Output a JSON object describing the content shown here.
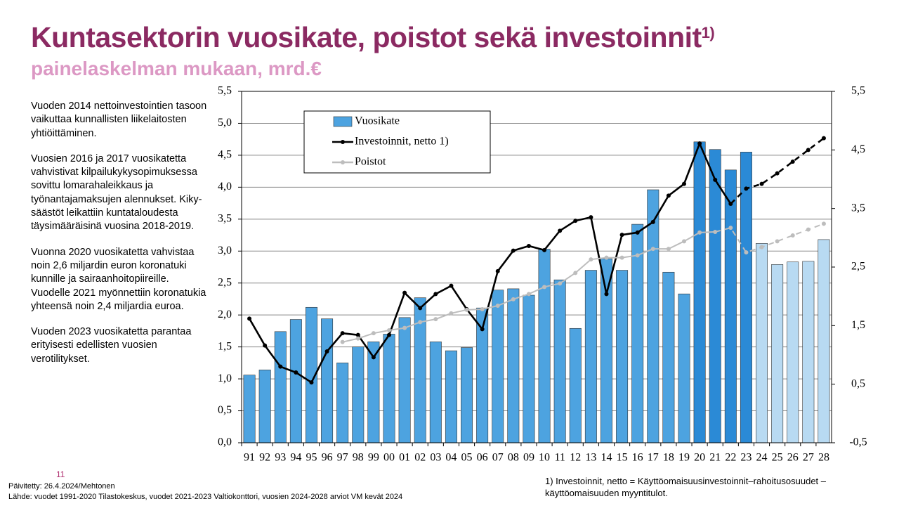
{
  "header": {
    "title": "Kuntasektorin vuosikate, poistot sekä investoinnit",
    "title_sup": "1)",
    "subtitle": "painelaskelman mukaan, mrd.€"
  },
  "side_text": [
    "Vuoden 2014 nettoinvestointien tasoon vaikuttaa kunnallisten liikelaitosten yhtiöittäminen.",
    "Vuosien 2016 ja 2017 vuosikatetta vahvistivat kilpailukykysopimuksessa sovittu lomarahaleikkaus ja työnantajamaksujen alennukset. Kiky-säästöt leikattiin kuntataloudesta täysimääräisinä vuosina 2018-2019.",
    "Vuonna 2020 vuosikatetta vahvistaa noin 2,6 miljardin euron koronatuki kunnille ja sairaanhoitopiireille. Vuodelle 2021 myönnettiin koronatukia yhteensä noin 2,4 miljardia euroa.",
    "Vuoden 2023 vuosikatetta parantaa erityisesti edellisten vuosien verotilitykset."
  ],
  "page_number": "11",
  "footer": {
    "updated": "Päivitetty: 26.4.2024/Mehtonen",
    "source": "Lähde: vuodet 1991-2020 Tilastokeskus, vuodet 2021-2023 Valtiokonttori, vuosien 2024-2028 arviot VM kevät 2024",
    "footnote": "1) Investoinnit, netto  = Käyttöomaisuusinvestoinnit–rahoitusosuudet – käyttöomaisuuden myyntitulot."
  },
  "chart_data": {
    "type": "bar_line",
    "categories": [
      "91",
      "92",
      "93",
      "94",
      "95",
      "96",
      "97",
      "98",
      "99",
      "00",
      "01",
      "02",
      "03",
      "04",
      "05",
      "06",
      "07",
      "08",
      "09",
      "10",
      "11",
      "12",
      "13",
      "14",
      "15",
      "16",
      "17",
      "18",
      "19",
      "20",
      "21",
      "22",
      "23",
      "24",
      "25",
      "26",
      "27",
      "28"
    ],
    "series": [
      {
        "name": "Vuosikate",
        "type": "bar",
        "color": "#4da3e0",
        "colors": [
          "#4da3e0",
          "#4da3e0",
          "#4da3e0",
          "#4da3e0",
          "#4da3e0",
          "#4da3e0",
          "#4da3e0",
          "#4da3e0",
          "#4da3e0",
          "#4da3e0",
          "#4da3e0",
          "#4da3e0",
          "#4da3e0",
          "#4da3e0",
          "#4da3e0",
          "#4da3e0",
          "#4da3e0",
          "#4da3e0",
          "#4da3e0",
          "#4da3e0",
          "#4da3e0",
          "#4da3e0",
          "#4da3e0",
          "#4da3e0",
          "#4da3e0",
          "#4da3e0",
          "#4da3e0",
          "#4da3e0",
          "#4da3e0",
          "#2b8ad6",
          "#2b8ad6",
          "#2b8ad6",
          "#2b8ad6",
          "#b8daf2",
          "#b8daf2",
          "#b8daf2",
          "#b8daf2",
          "#b8daf2"
        ],
        "values": [
          1.06,
          1.14,
          1.74,
          1.93,
          2.12,
          1.94,
          1.25,
          1.5,
          1.58,
          1.7,
          1.96,
          2.27,
          1.58,
          1.44,
          1.49,
          2.11,
          2.39,
          2.41,
          2.31,
          3.03,
          2.55,
          1.79,
          2.7,
          2.88,
          2.7,
          3.42,
          3.96,
          2.67,
          2.33,
          4.71,
          4.59,
          4.27,
          4.55,
          3.12,
          2.79,
          2.83,
          2.84,
          3.18
        ]
      },
      {
        "name": "Investoinnit, netto 1)",
        "type": "line",
        "axis": "y2",
        "color": "#000000",
        "dash_from": 32,
        "values": [
          1.62,
          1.16,
          0.8,
          0.7,
          0.53,
          1.06,
          1.37,
          1.34,
          0.96,
          1.34,
          2.06,
          1.8,
          2.04,
          2.18,
          1.78,
          1.44,
          2.43,
          2.78,
          2.86,
          2.79,
          3.12,
          3.29,
          3.35,
          2.04,
          3.05,
          3.09,
          3.27,
          3.72,
          3.92,
          4.61,
          3.99,
          3.58,
          3.84,
          3.92,
          4.1,
          4.3,
          4.5,
          4.7
        ]
      },
      {
        "name": "Poistot",
        "type": "line",
        "axis": "y2",
        "color": "#bdbdbd",
        "dash_from": 31,
        "values": [
          null,
          null,
          null,
          null,
          null,
          null,
          1.22,
          1.28,
          1.37,
          1.42,
          1.46,
          1.56,
          1.61,
          1.71,
          1.77,
          1.78,
          1.84,
          1.95,
          2.04,
          2.16,
          2.22,
          2.4,
          2.63,
          2.66,
          2.66,
          2.7,
          2.81,
          2.81,
          2.94,
          3.09,
          3.1,
          3.17,
          2.75,
          2.84,
          2.94,
          3.04,
          3.14,
          3.24
        ]
      }
    ],
    "ylim": [
      0,
      5.5
    ],
    "yticks": [
      {
        "value": 0,
        "label": "0,0"
      },
      {
        "value": 0.5,
        "label": "0,5"
      },
      {
        "value": 1,
        "label": "1,0"
      },
      {
        "value": 1.5,
        "label": "1,5"
      },
      {
        "value": 2,
        "label": "2,0"
      },
      {
        "value": 2.5,
        "label": "2,5"
      },
      {
        "value": 3,
        "label": "3,0"
      },
      {
        "value": 3.5,
        "label": "3,5"
      },
      {
        "value": 4,
        "label": "4,0"
      },
      {
        "value": 4.5,
        "label": "4,5"
      },
      {
        "value": 5,
        "label": "5,0"
      },
      {
        "value": 5.5,
        "label": "5,5"
      }
    ],
    "y2lim": [
      -0.5,
      5.5
    ],
    "y2ticks": [
      {
        "value": -0.5,
        "label": "-0,5"
      },
      {
        "value": 0.5,
        "label": "0,5"
      },
      {
        "value": 1.5,
        "label": "1,5"
      },
      {
        "value": 2.5,
        "label": "2,5"
      },
      {
        "value": 3.5,
        "label": "3,5"
      },
      {
        "value": 4.5,
        "label": "4,5"
      },
      {
        "value": 5.5,
        "label": "5,5"
      }
    ],
    "grid": true
  }
}
